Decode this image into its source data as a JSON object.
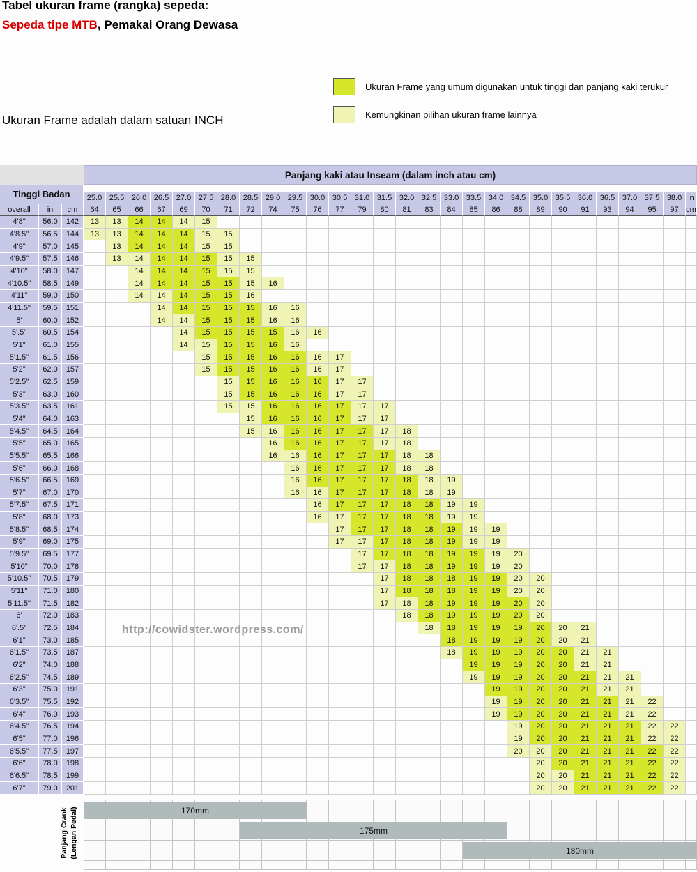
{
  "title": {
    "line1": "Tabel ukuran frame (rangka) sepeda:",
    "line2_red": "Sepeda tipe MTB",
    "line2_rest": ", Pemakai Orang Dewasa"
  },
  "legend": {
    "common_label": "Ukuran Frame yang umum digunakan untuk tinggi dan panjang kaki terukur",
    "possible_label": "Kemungkinan pilihan ukuran frame lainnya",
    "common_color": "#d6e62a",
    "possible_color": "#eff4b4"
  },
  "note": "Ukuran Frame adalah dalam satuan INCH",
  "watermark": "http://cowidster.wordpress.com/",
  "colors": {
    "header_bg": "#c7c8e6",
    "crank_bar": "#b1baba"
  },
  "chart_data": {
    "type": "table",
    "inseam_header": "Panjang kaki atau Inseam (dalam inch atau cm)",
    "height_header": "Tinggi Badan",
    "height_subheaders": [
      "overall",
      "in",
      "cm"
    ],
    "unit_labels": [
      "in",
      "cm"
    ],
    "inseam_in": [
      "25.0",
      "25.5",
      "26.0",
      "26.5",
      "27.0",
      "27.5",
      "28.0",
      "28.5",
      "29.0",
      "29.5",
      "30.0",
      "30.5",
      "31.0",
      "31.5",
      "32.0",
      "32.5",
      "33.0",
      "33.5",
      "34.0",
      "34.5",
      "35.0",
      "35.5",
      "36.0",
      "36.5",
      "37.0",
      "37.5",
      "38.0"
    ],
    "inseam_cm": [
      64,
      65,
      66,
      67,
      69,
      70,
      71,
      72,
      74,
      75,
      76,
      77,
      79,
      80,
      81,
      83,
      84,
      85,
      86,
      88,
      89,
      90,
      91,
      93,
      94,
      95,
      97
    ],
    "rows": [
      {
        "label": "4'8\"",
        "in": "56.0",
        "cm": "142",
        "start": 0,
        "values": [
          13,
          13,
          14,
          14,
          14,
          15
        ],
        "bright": [
          2,
          3
        ]
      },
      {
        "label": "4'8.5\"",
        "in": "56.5",
        "cm": "144",
        "start": 0,
        "values": [
          13,
          13,
          14,
          14,
          14,
          15,
          15
        ],
        "bright": [
          2,
          4
        ]
      },
      {
        "label": "4'9\"",
        "in": "57.0",
        "cm": "145",
        "start": 1,
        "values": [
          13,
          14,
          14,
          14,
          15,
          15
        ],
        "bright": [
          2,
          4
        ]
      },
      {
        "label": "4'9.5\"",
        "in": "57.5",
        "cm": "146",
        "start": 1,
        "values": [
          13,
          14,
          14,
          14,
          15,
          15,
          15
        ],
        "bright": [
          3,
          5
        ]
      },
      {
        "label": "4'10\"",
        "in": "58.0",
        "cm": "147",
        "start": 2,
        "values": [
          14,
          14,
          14,
          15,
          15,
          15
        ],
        "bright": [
          3,
          5
        ]
      },
      {
        "label": "4'10.5\"",
        "in": "58.5",
        "cm": "149",
        "start": 2,
        "values": [
          14,
          14,
          14,
          15,
          15,
          15,
          16
        ],
        "bright": [
          3,
          6
        ]
      },
      {
        "label": "4'11\"",
        "in": "59.0",
        "cm": "150",
        "start": 2,
        "values": [
          14,
          14,
          14,
          15,
          15,
          16
        ],
        "bright": [
          4,
          6
        ]
      },
      {
        "label": "4'11.5\"",
        "in": "59.5",
        "cm": "151",
        "start": 3,
        "values": [
          14,
          14,
          15,
          15,
          15,
          16,
          16
        ],
        "bright": [
          4,
          7
        ]
      },
      {
        "label": "5'",
        "in": "60.0",
        "cm": "152",
        "start": 3,
        "values": [
          14,
          14,
          15,
          15,
          15,
          16,
          16
        ],
        "bright": [
          5,
          7
        ]
      },
      {
        "label": "5'.5\"",
        "in": "60.5",
        "cm": "154",
        "start": 4,
        "values": [
          14,
          15,
          15,
          15,
          15,
          16,
          16
        ],
        "bright": [
          5,
          8
        ]
      },
      {
        "label": "5'1\"",
        "in": "61.0",
        "cm": "155",
        "start": 4,
        "values": [
          14,
          15,
          15,
          15,
          16,
          16
        ],
        "bright": [
          6,
          8
        ]
      },
      {
        "label": "5'1.5\"",
        "in": "61.5",
        "cm": "156",
        "start": 5,
        "values": [
          15,
          15,
          15,
          16,
          16,
          16,
          17
        ],
        "bright": [
          6,
          9
        ]
      },
      {
        "label": "5'2\"",
        "in": "62.0",
        "cm": "157",
        "start": 5,
        "values": [
          15,
          15,
          15,
          16,
          16,
          16,
          17
        ],
        "bright": [
          6,
          9
        ]
      },
      {
        "label": "5'2.5\"",
        "in": "62.5",
        "cm": "159",
        "start": 6,
        "values": [
          15,
          15,
          16,
          16,
          16,
          17,
          17
        ],
        "bright": [
          7,
          10
        ]
      },
      {
        "label": "5'3\"",
        "in": "63.0",
        "cm": "160",
        "start": 6,
        "values": [
          15,
          15,
          16,
          16,
          16,
          17,
          17
        ],
        "bright": [
          7,
          10
        ]
      },
      {
        "label": "5'3.5\"",
        "in": "63.5",
        "cm": "161",
        "start": 6,
        "values": [
          15,
          15,
          16,
          16,
          16,
          17,
          17,
          17
        ],
        "bright": [
          8,
          11
        ]
      },
      {
        "label": "5'4\"",
        "in": "64.0",
        "cm": "163",
        "start": 7,
        "values": [
          15,
          16,
          16,
          16,
          17,
          17,
          17
        ],
        "bright": [
          8,
          11
        ]
      },
      {
        "label": "5'4.5\"",
        "in": "64.5",
        "cm": "164",
        "start": 7,
        "values": [
          15,
          16,
          16,
          16,
          17,
          17,
          17,
          18
        ],
        "bright": [
          9,
          12
        ]
      },
      {
        "label": "5'5\"",
        "in": "65.0",
        "cm": "165",
        "start": 8,
        "values": [
          16,
          16,
          16,
          17,
          17,
          17,
          18
        ],
        "bright": [
          9,
          12
        ]
      },
      {
        "label": "5'5.5\"",
        "in": "65.5",
        "cm": "166",
        "start": 8,
        "values": [
          16,
          16,
          16,
          17,
          17,
          17,
          18,
          18
        ],
        "bright": [
          10,
          13
        ]
      },
      {
        "label": "5'6\"",
        "in": "66.0",
        "cm": "168",
        "start": 9,
        "values": [
          16,
          16,
          17,
          17,
          17,
          18,
          18
        ],
        "bright": [
          10,
          13
        ]
      },
      {
        "label": "5'6.5\"",
        "in": "66.5",
        "cm": "169",
        "start": 9,
        "values": [
          16,
          16,
          17,
          17,
          17,
          18,
          18,
          19
        ],
        "bright": [
          10,
          14
        ]
      },
      {
        "label": "5'7\"",
        "in": "67.0",
        "cm": "170",
        "start": 9,
        "values": [
          16,
          16,
          17,
          17,
          17,
          18,
          18,
          19
        ],
        "bright": [
          11,
          14
        ]
      },
      {
        "label": "5'7.5\"",
        "in": "67.5",
        "cm": "171",
        "start": 10,
        "values": [
          16,
          17,
          17,
          17,
          18,
          18,
          19,
          19
        ],
        "bright": [
          11,
          15
        ]
      },
      {
        "label": "5'8\"",
        "in": "68.0",
        "cm": "173",
        "start": 10,
        "values": [
          16,
          17,
          17,
          17,
          18,
          18,
          19,
          19
        ],
        "bright": [
          12,
          15
        ]
      },
      {
        "label": "5'8.5\"",
        "in": "68.5",
        "cm": "174",
        "start": 11,
        "values": [
          17,
          17,
          17,
          18,
          18,
          19,
          19,
          19
        ],
        "bright": [
          12,
          16
        ]
      },
      {
        "label": "5'9\"",
        "in": "69.0",
        "cm": "175",
        "start": 11,
        "values": [
          17,
          17,
          17,
          18,
          18,
          19,
          19,
          19
        ],
        "bright": [
          13,
          16
        ]
      },
      {
        "label": "5'9.5\"",
        "in": "69.5",
        "cm": "177",
        "start": 12,
        "values": [
          17,
          17,
          18,
          18,
          19,
          19,
          19,
          20
        ],
        "bright": [
          13,
          17
        ]
      },
      {
        "label": "5'10\"",
        "in": "70.0",
        "cm": "178",
        "start": 12,
        "values": [
          17,
          17,
          18,
          18,
          19,
          19,
          19,
          20
        ],
        "bright": [
          14,
          17
        ]
      },
      {
        "label": "5'10.5\"",
        "in": "70.5",
        "cm": "179",
        "start": 13,
        "values": [
          17,
          18,
          18,
          18,
          19,
          19,
          20,
          20
        ],
        "bright": [
          14,
          18
        ]
      },
      {
        "label": "5'11\"",
        "in": "71.0",
        "cm": "180",
        "start": 13,
        "values": [
          17,
          18,
          18,
          18,
          19,
          19,
          20,
          20
        ],
        "bright": [
          14,
          18
        ]
      },
      {
        "label": "5'11.5\"",
        "in": "71.5",
        "cm": "182",
        "start": 13,
        "values": [
          17,
          18,
          18,
          19,
          19,
          19,
          20,
          20
        ],
        "bright": [
          15,
          19
        ]
      },
      {
        "label": "6'",
        "in": "72.0",
        "cm": "183",
        "start": 14,
        "values": [
          18,
          18,
          19,
          19,
          19,
          20,
          20
        ],
        "bright": [
          15,
          19
        ]
      },
      {
        "label": "6'.5\"",
        "in": "72.5",
        "cm": "184",
        "start": 15,
        "values": [
          18,
          18,
          19,
          19,
          19,
          20,
          20,
          21
        ],
        "bright": [
          16,
          20
        ]
      },
      {
        "label": "6'1\"",
        "in": "73.0",
        "cm": "185",
        "start": 16,
        "values": [
          18,
          19,
          19,
          19,
          20,
          20,
          21
        ],
        "bright": [
          16,
          20
        ]
      },
      {
        "label": "6'1.5\"",
        "in": "73.5",
        "cm": "187",
        "start": 16,
        "values": [
          18,
          19,
          19,
          19,
          20,
          20,
          21,
          21
        ],
        "bright": [
          17,
          21
        ]
      },
      {
        "label": "6'2\"",
        "in": "74.0",
        "cm": "188",
        "start": 17,
        "values": [
          19,
          19,
          19,
          20,
          20,
          21,
          21
        ],
        "bright": [
          17,
          21
        ]
      },
      {
        "label": "6'2.5\"",
        "in": "74.5",
        "cm": "189",
        "start": 17,
        "values": [
          19,
          19,
          19,
          20,
          20,
          21,
          21,
          21
        ],
        "bright": [
          18,
          22
        ]
      },
      {
        "label": "6'3\"",
        "in": "75.0",
        "cm": "191",
        "start": 18,
        "values": [
          19,
          19,
          20,
          20,
          21,
          21,
          21
        ],
        "bright": [
          18,
          22
        ]
      },
      {
        "label": "6'3.5\"",
        "in": "75.5",
        "cm": "192",
        "start": 18,
        "values": [
          19,
          19,
          20,
          20,
          21,
          21,
          21,
          22
        ],
        "bright": [
          19,
          23
        ]
      },
      {
        "label": "6'4\"",
        "in": "76.0",
        "cm": "193",
        "start": 18,
        "values": [
          19,
          19,
          20,
          20,
          21,
          21,
          21,
          22
        ],
        "bright": [
          19,
          23
        ]
      },
      {
        "label": "6'4.5\"",
        "in": "76.5",
        "cm": "194",
        "start": 19,
        "values": [
          19,
          20,
          20,
          21,
          21,
          21,
          22,
          22
        ],
        "bright": [
          20,
          24
        ]
      },
      {
        "label": "6'5\"",
        "in": "77.0",
        "cm": "196",
        "start": 19,
        "values": [
          19,
          20,
          20,
          21,
          21,
          21,
          22,
          22
        ],
        "bright": [
          20,
          24
        ]
      },
      {
        "label": "6'5.5\"",
        "in": "77.5",
        "cm": "197",
        "start": 19,
        "values": [
          20,
          20,
          20,
          21,
          21,
          21,
          22,
          22
        ],
        "bright": [
          21,
          25
        ]
      },
      {
        "label": "6'6\"",
        "in": "78.0",
        "cm": "198",
        "start": 20,
        "values": [
          20,
          20,
          21,
          21,
          21,
          22,
          22
        ],
        "bright": [
          21,
          25
        ]
      },
      {
        "label": "6'6.5\"",
        "in": "78.5",
        "cm": "199",
        "start": 20,
        "values": [
          20,
          20,
          21,
          21,
          21,
          22,
          22
        ],
        "bright": [
          22,
          25
        ]
      },
      {
        "label": "6'7\"",
        "in": "79.0",
        "cm": "201",
        "start": 20,
        "values": [
          20,
          20,
          21,
          21,
          21,
          22,
          22
        ],
        "bright": [
          22,
          25
        ]
      }
    ],
    "crank": {
      "label_line1": "Panjang Crank",
      "label_line2": "(Lengan Pedal)",
      "bars": [
        {
          "label": "170mm",
          "row": 0,
          "start": 0,
          "span": 10
        },
        {
          "label": "175mm",
          "row": 1,
          "start": 7,
          "span": 12
        },
        {
          "label": "180mm",
          "row": 2,
          "start": 17,
          "span": 10,
          "extend": true
        }
      ]
    }
  }
}
